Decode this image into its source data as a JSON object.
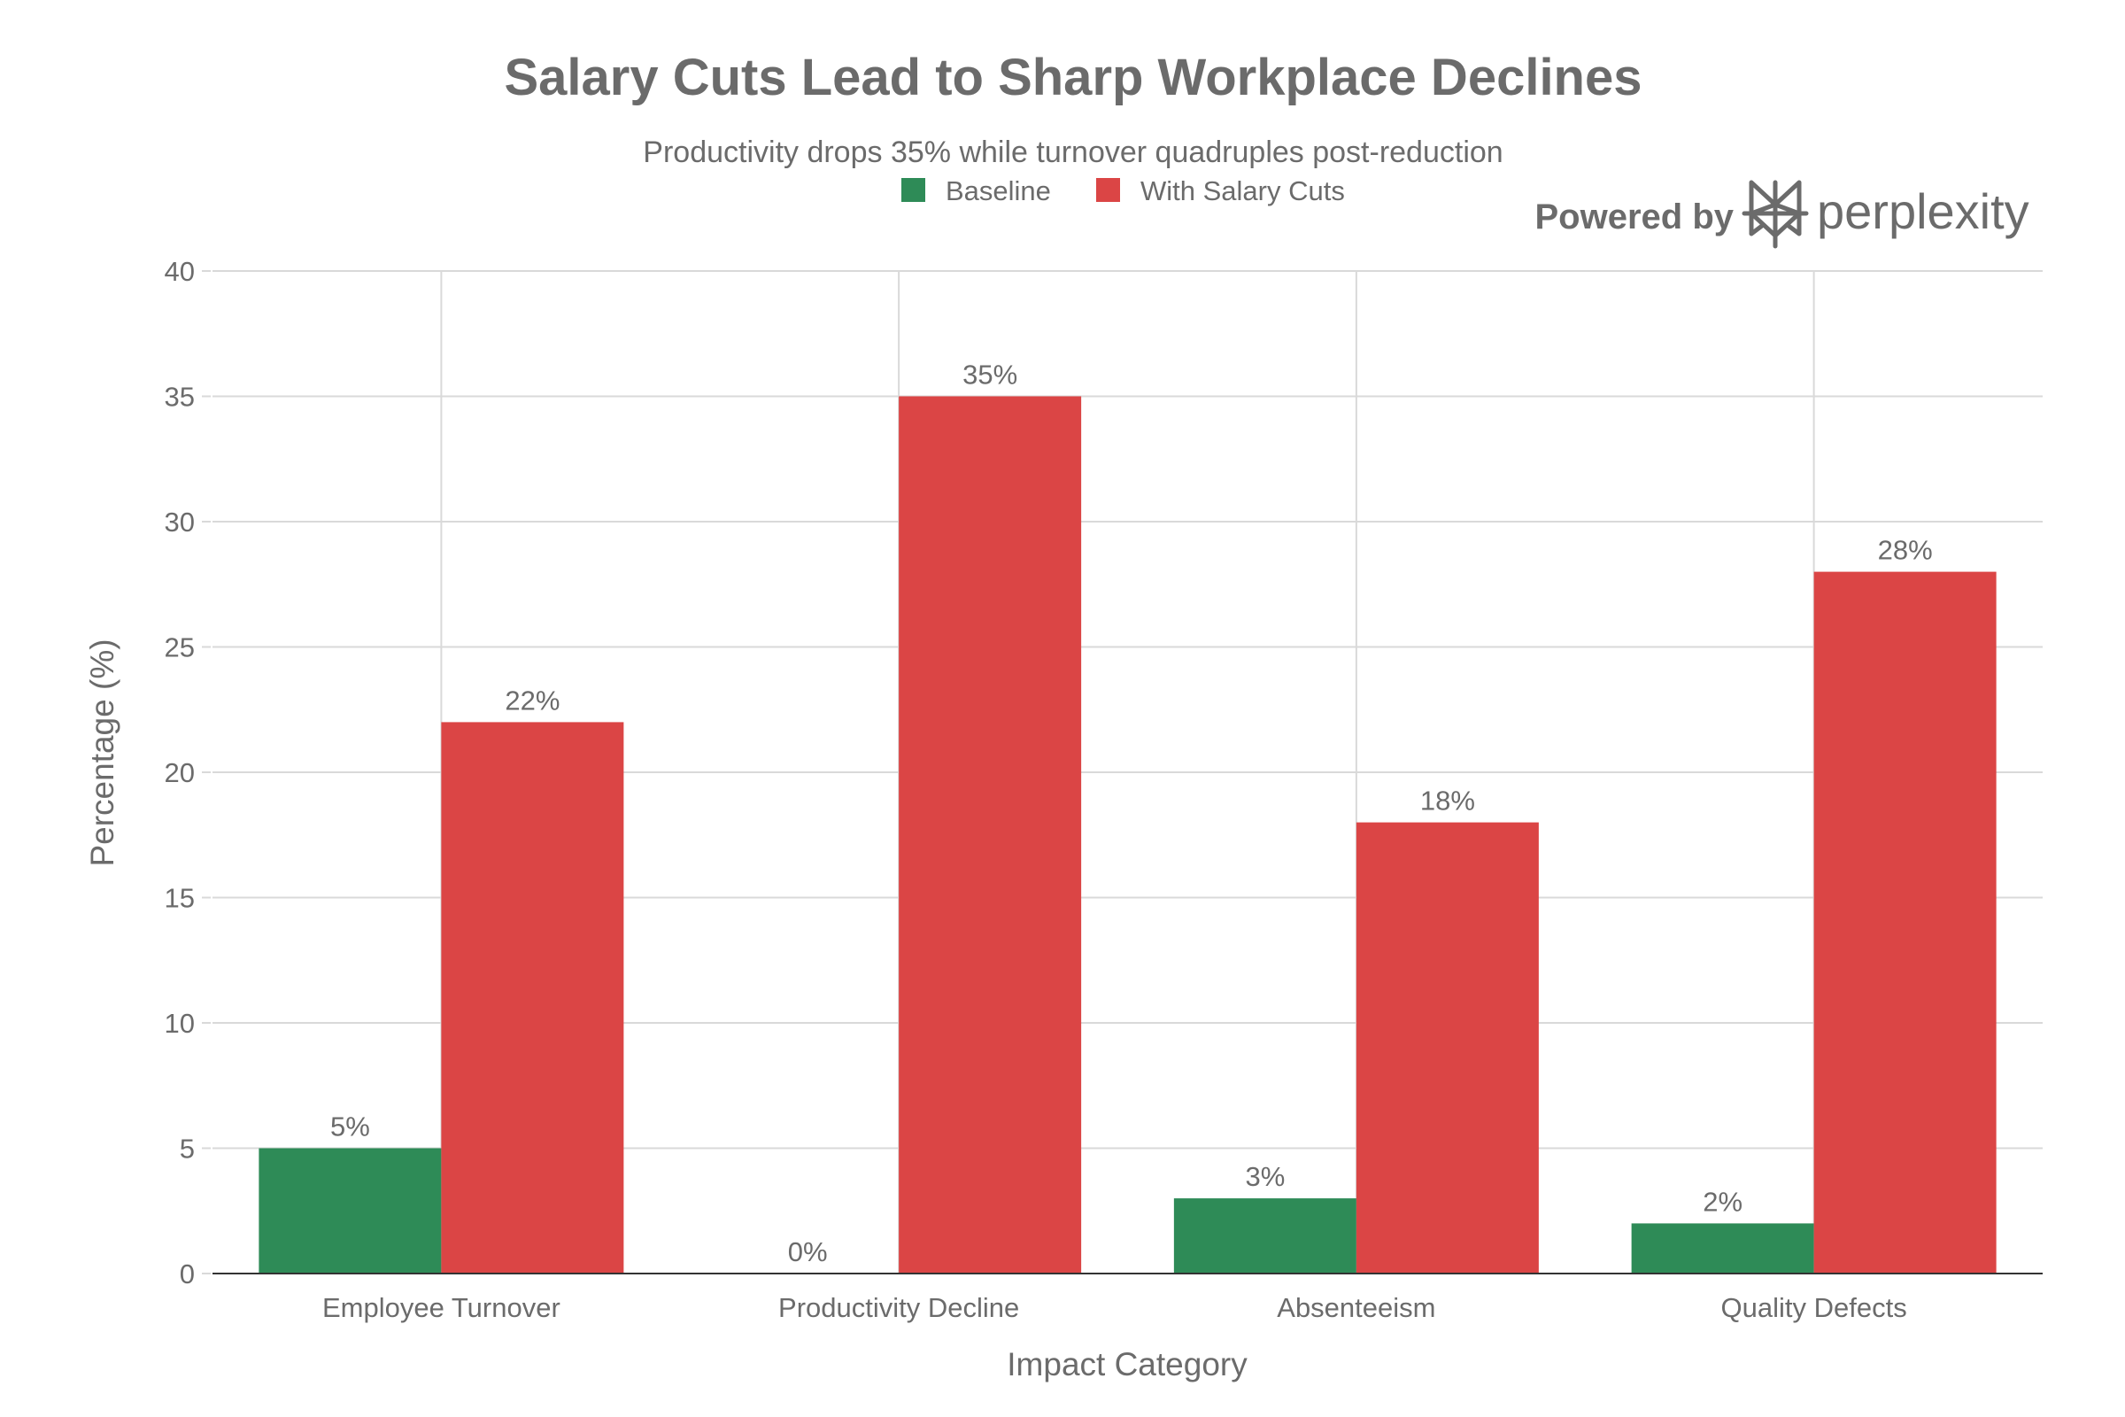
{
  "watermark": {
    "prefix": "Powered by",
    "brand": "perplexity",
    "icon": "perplexity-logo-icon"
  },
  "colors": {
    "baseline": "#2e8b57",
    "cuts": "#db4545",
    "grid": "#d9d9d9",
    "axis": "#333333",
    "text": "#6b6b6b"
  },
  "chart_data": {
    "type": "bar",
    "title": "Salary Cuts Lead to Sharp Workplace Declines",
    "subtitle": "Productivity drops 35% while turnover quadruples post-reduction",
    "xlabel": "Impact Category",
    "ylabel": "Percentage (%)",
    "categories": [
      "Employee Turnover",
      "Productivity Decline",
      "Absenteeism",
      "Quality Defects"
    ],
    "series": [
      {
        "name": "Baseline",
        "color": "#2e8b57",
        "values": [
          5,
          0,
          3,
          2
        ],
        "labels": [
          "5%",
          "0%",
          "3%",
          "2%"
        ]
      },
      {
        "name": "With Salary Cuts",
        "color": "#db4545",
        "values": [
          22,
          35,
          18,
          28
        ],
        "labels": [
          "22%",
          "35%",
          "18%",
          "28%"
        ]
      }
    ],
    "ylim": [
      0,
      40
    ],
    "yticks": [
      0,
      5,
      10,
      15,
      20,
      25,
      30,
      35,
      40
    ],
    "grid": true,
    "legend_position": "top-center"
  }
}
